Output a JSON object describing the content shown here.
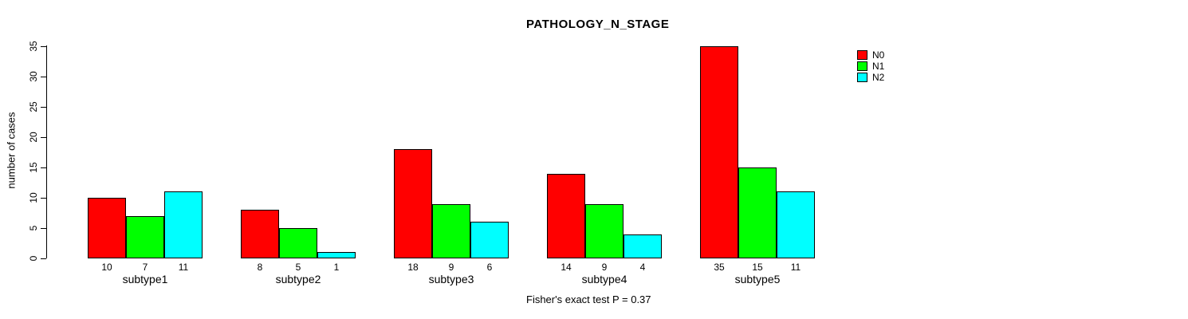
{
  "chart_data": {
    "type": "bar",
    "title": "PATHOLOGY_N_STAGE",
    "ylabel": "number of cases",
    "xlabel": "",
    "ylim": [
      0,
      35
    ],
    "y_ticks": [
      0,
      5,
      10,
      15,
      20,
      25,
      30,
      35
    ],
    "grid": false,
    "legend_position": "top-right",
    "categories": [
      "subtype1",
      "subtype2",
      "subtype3",
      "subtype4",
      "subtype5"
    ],
    "series": [
      {
        "name": "N0",
        "color": "#ff0000",
        "values": [
          10,
          8,
          18,
          14,
          35
        ]
      },
      {
        "name": "N1",
        "color": "#00ff00",
        "values": [
          7,
          5,
          9,
          9,
          15
        ]
      },
      {
        "name": "N2",
        "color": "#00ffff",
        "values": [
          11,
          1,
          6,
          4,
          11
        ]
      }
    ],
    "bar_value_labels": [
      [
        "10",
        "7",
        "11"
      ],
      [
        "8",
        "5",
        "1"
      ],
      [
        "18",
        "9",
        "6"
      ],
      [
        "14",
        "9",
        "4"
      ],
      [
        "35",
        "15",
        "11"
      ]
    ],
    "footer": "Fisher's exact test P = 0.37"
  }
}
